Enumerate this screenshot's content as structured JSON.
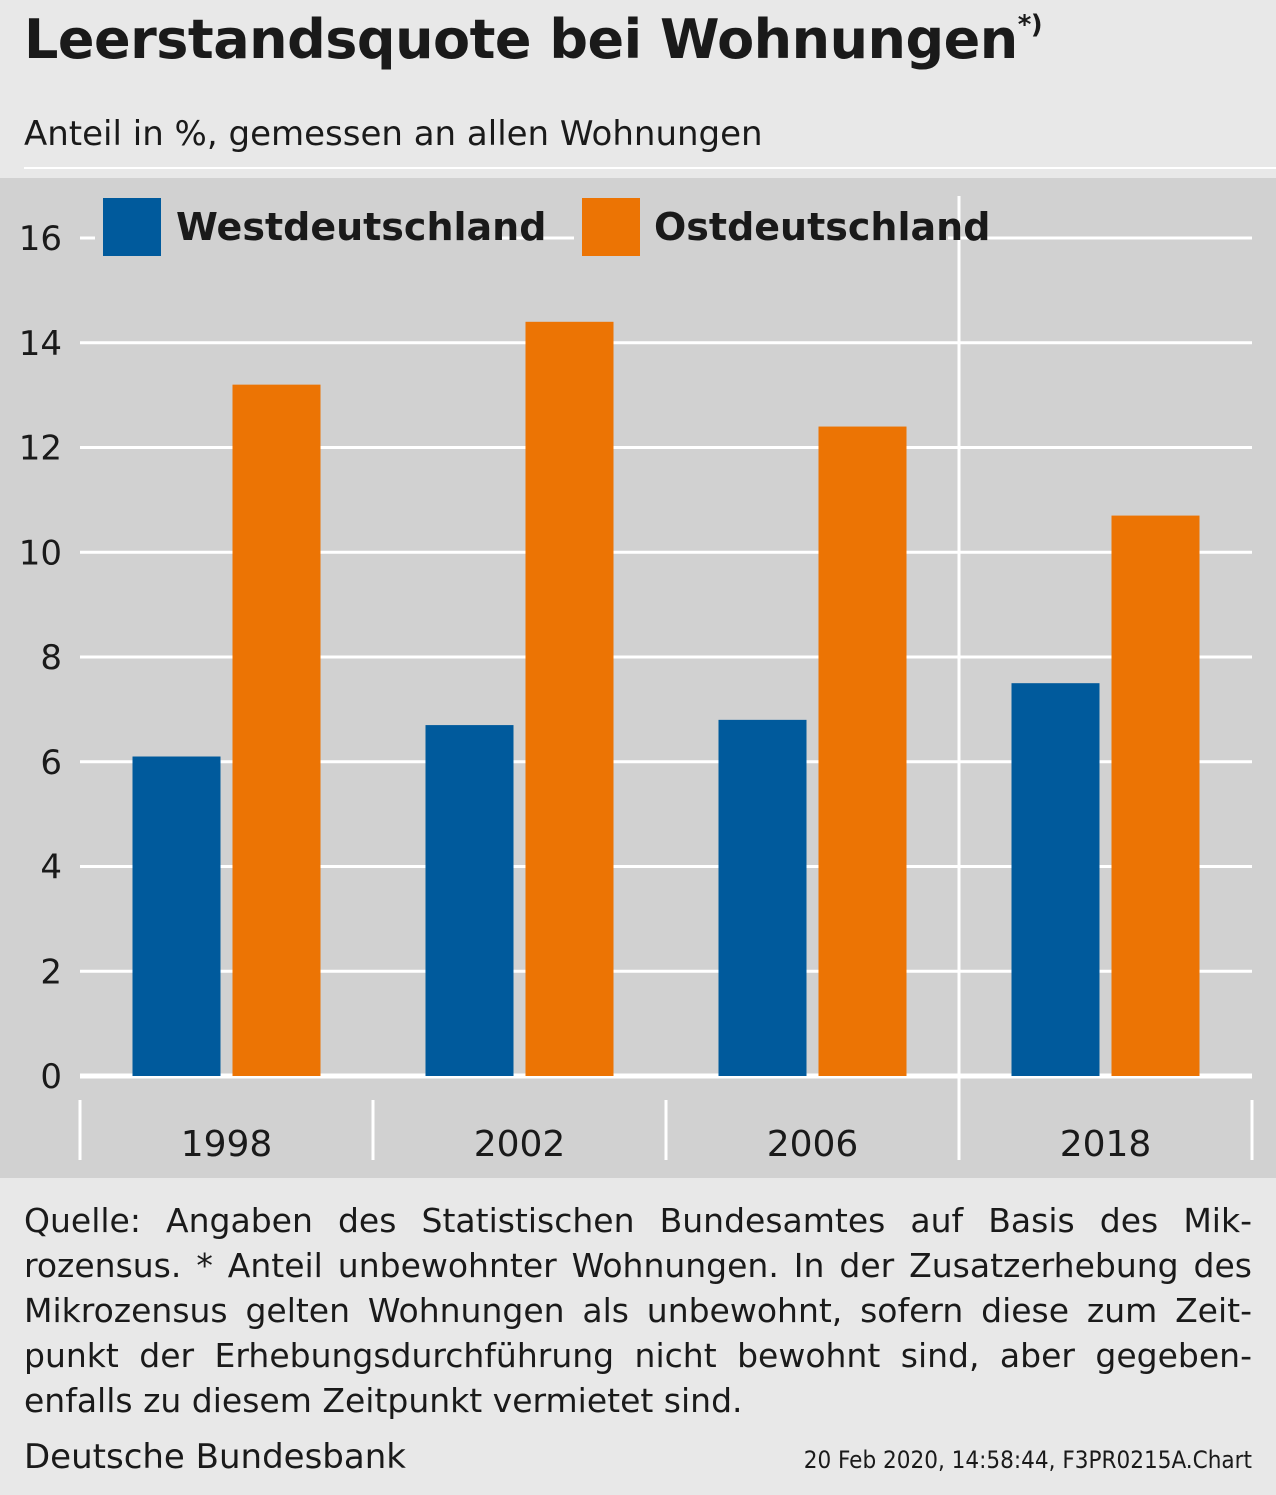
{
  "header": {
    "title": "Leerstandsquote bei Wohnungen",
    "title_mark": "*)",
    "subtitle": "Anteil in %, gemessen an allen Wohnungen"
  },
  "chart_data": {
    "type": "bar",
    "categories": [
      "1998",
      "2002",
      "2006",
      "2018"
    ],
    "series": [
      {
        "name": "Westdeutschland",
        "color": "#005a9c",
        "values": [
          6.1,
          6.7,
          6.8,
          7.5
        ]
      },
      {
        "name": "Ostdeutschland",
        "color": "#ec7404",
        "values": [
          13.2,
          14.4,
          12.4,
          10.7
        ]
      }
    ],
    "ylim": [
      0,
      16
    ],
    "yticks": [
      "0",
      "2",
      "4",
      "6",
      "8",
      "10",
      "12",
      "14",
      "16"
    ],
    "grid": true,
    "legend": "top-left",
    "break_before_category": "2018"
  },
  "footer": {
    "footnote_lines": [
      "Quelle: Angaben des Statistischen Bundesamtes auf Basis des Mik-",
      "rozensus. * Anteil unbewohnter Wohnungen. In der Zusatzerhebung des",
      "Mikrozensus gelten Wohnungen als unbewohnt, sofern diese zum Zeit-",
      "punkt der Erhebungsdurchführung nicht bewohnt sind, aber gegeben-",
      "enfalls zu diesem Zeitpunkt vermietet sind."
    ],
    "organization": "Deutsche Bundesbank",
    "stamp": "20 Feb 2020, 14:58:44, F3PR0215A.Chart"
  }
}
